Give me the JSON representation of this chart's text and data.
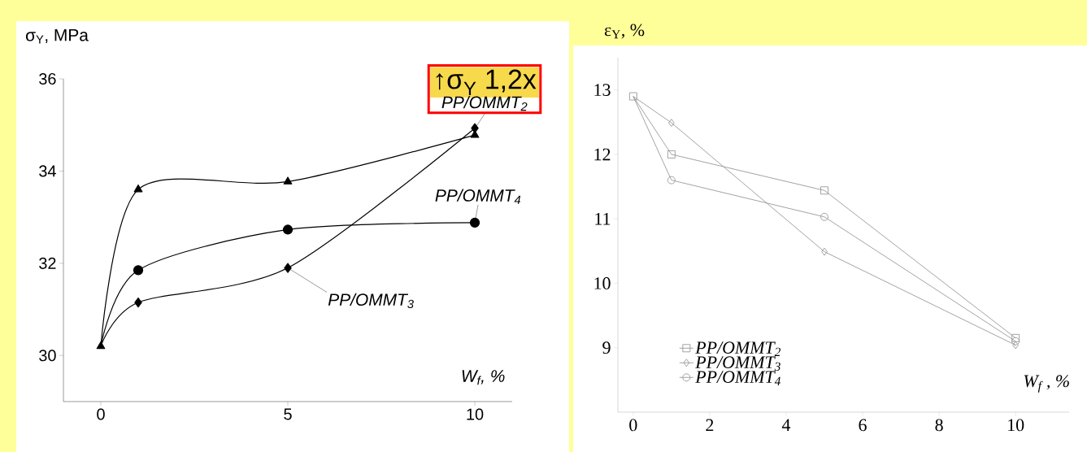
{
  "chart_data": [
    {
      "type": "line",
      "ylabel": "σ$_{Y}$, MPa",
      "xlabel": "W$_{f}$, %",
      "x": [
        0,
        1,
        5,
        10
      ],
      "xlim": [
        -1,
        11
      ],
      "xticks": [
        0,
        5,
        10
      ],
      "ylim": [
        29,
        36
      ],
      "yticks": [
        30,
        32,
        34,
        36
      ],
      "legend": false,
      "annotations": [
        "↑σ$_{Y}$ 1,2x"
      ],
      "series": [
        {
          "name": "PP/OMMT$_{2}$",
          "color": "#000000",
          "marker": "triangle",
          "values": [
            30.2,
            33.6,
            33.77,
            34.78
          ]
        },
        {
          "name": "PP/OMMT$_{3}$",
          "color": "#000000",
          "marker": "diamond",
          "values": [
            30.2,
            31.15,
            31.9,
            34.93
          ]
        },
        {
          "name": "PP/OMMT$_{4}$",
          "color": "#000000",
          "marker": "circle",
          "values": [
            30.2,
            31.85,
            32.73,
            32.88
          ]
        }
      ]
    },
    {
      "type": "line",
      "ylabel": "ε$_{Y}$, %",
      "xlabel": "W$_{f}$ , %",
      "x": [
        0,
        1,
        5,
        10
      ],
      "xlim": [
        -0.4,
        11.4
      ],
      "xticks": [
        0,
        2,
        4,
        6,
        8,
        10
      ],
      "ylim": [
        8,
        13.5
      ],
      "yticks": [
        9,
        10,
        11,
        12,
        13
      ],
      "legend": "bottom left",
      "series": [
        {
          "name": "PP/OMMT$_{2}$",
          "color": "#999999",
          "marker": "square",
          "values": [
            12.9,
            12.0,
            11.44,
            9.15
          ]
        },
        {
          "name": "PP/OMMT$_{3}$",
          "color": "#999999",
          "marker": "diamond",
          "values": [
            12.9,
            12.49,
            10.49,
            9.04
          ]
        },
        {
          "name": "PP/OMMT$_{4}$",
          "color": "#999999",
          "marker": "circle",
          "values": [
            12.9,
            11.6,
            11.03,
            9.1
          ]
        }
      ]
    }
  ]
}
